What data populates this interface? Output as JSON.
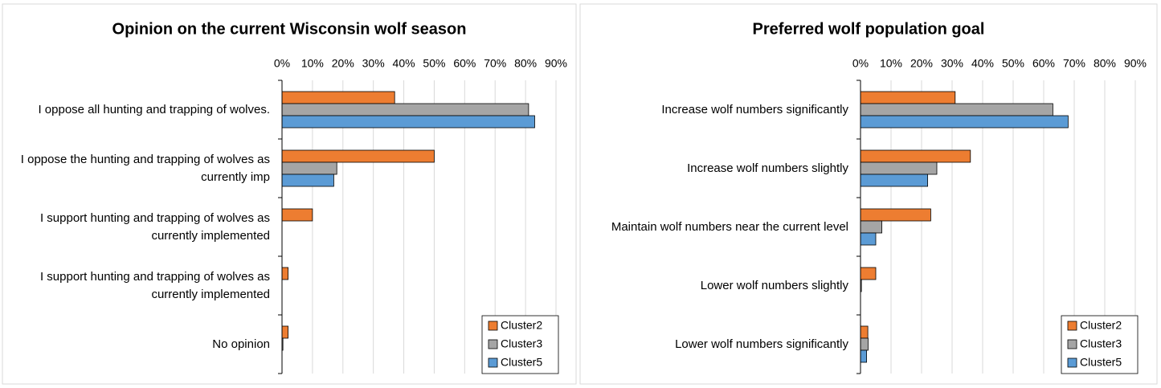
{
  "chart_data": [
    {
      "type": "barh",
      "title": "Opinion on the current Wisconsin wolf season",
      "categories": [
        "I oppose all hunting and trapping of wolves.",
        "I oppose the hunting and trapping of wolves as currently imp",
        "I support hunting and trapping of wolves as currently implemented",
        "I support hunting and trapping of wolves as currently implemented",
        "No opinion"
      ],
      "series": [
        {
          "name": "Cluster2",
          "color": "#ed7d31",
          "values": [
            37,
            50,
            10,
            2,
            2
          ]
        },
        {
          "name": "Cluster3",
          "color": "#a5a5a5",
          "values": [
            81,
            18,
            0,
            0,
            0.3
          ]
        },
        {
          "name": "Cluster5",
          "color": "#5b9bd5",
          "values": [
            83,
            17,
            0,
            0,
            0
          ]
        }
      ],
      "xlim": [
        0,
        90
      ],
      "xticks": [
        {
          "value": 0,
          "label": "0%"
        },
        {
          "value": 10,
          "label": "10%"
        },
        {
          "value": 20,
          "label": "20%"
        },
        {
          "value": 30,
          "label": "30%"
        },
        {
          "value": 40,
          "label": "40%"
        },
        {
          "value": 50,
          "label": "50%"
        },
        {
          "value": 60,
          "label": "60%"
        },
        {
          "value": 70,
          "label": "70%"
        },
        {
          "value": 80,
          "label": "80%"
        },
        {
          "value": 90,
          "label": "90%"
        }
      ],
      "grid": true,
      "legend": "lower right"
    },
    {
      "type": "barh",
      "title": "Preferred wolf population goal",
      "categories": [
        "Increase wolf numbers significantly",
        "Increase wolf numbers slightly",
        "Maintain wolf numbers near the current level",
        "Lower wolf numbers slightly",
        "Lower wolf numbers significantly"
      ],
      "series": [
        {
          "name": "Cluster2",
          "color": "#ed7d31",
          "values": [
            31,
            36,
            23,
            5,
            2.4
          ]
        },
        {
          "name": "Cluster3",
          "color": "#a5a5a5",
          "values": [
            63,
            25,
            7,
            0.3,
            2.5
          ]
        },
        {
          "name": "Cluster5",
          "color": "#5b9bd5",
          "values": [
            68,
            22,
            5,
            0,
            2
          ]
        }
      ],
      "xlim": [
        0,
        90
      ],
      "xticks": [
        {
          "value": 0,
          "label": "0%"
        },
        {
          "value": 10,
          "label": "10%"
        },
        {
          "value": 20,
          "label": "20%"
        },
        {
          "value": 30,
          "label": "30%"
        },
        {
          "value": 40,
          "label": "40%"
        },
        {
          "value": 50,
          "label": "50%"
        },
        {
          "value": 60,
          "label": "60%"
        },
        {
          "value": 70,
          "label": "70%"
        },
        {
          "value": 80,
          "label": "80%"
        },
        {
          "value": 90,
          "label": "90%"
        }
      ],
      "grid": true,
      "legend": "lower right"
    }
  ]
}
